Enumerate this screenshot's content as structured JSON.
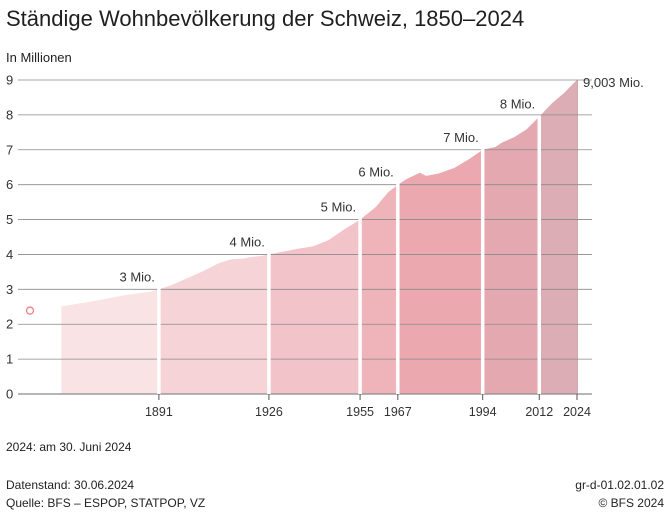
{
  "title": "Ständige Wohnbevölkerung der Schweiz, 1850–2024",
  "unit_label": "In Millionen",
  "note": "2024: am 30. Juni 2024",
  "footer": {
    "data_status": "Datenstand: 30.06.2024",
    "source": "Quelle: BFS – ESPOP, STATPOP, VZ",
    "code": "gr-d-01.02.01.02",
    "copyright": "© BFS 2024"
  },
  "colors": {
    "segments": [
      "#f9e3e5",
      "#f6d3d7",
      "#f2c3c8",
      "#efb4ba",
      "#eba8af",
      "#e4a9b0",
      "#dcadb4",
      "#d2a9af"
    ],
    "marker": "#e8898f",
    "grid": "#8a8a8a",
    "divider": "#ffffff"
  },
  "chart_data": {
    "type": "area",
    "title": "Ständige Wohnbevölkerung der Schweiz, 1850–2024",
    "ylabel": "In Millionen",
    "ylim": [
      0,
      9
    ],
    "yticks": [
      "0",
      "1",
      "2",
      "3",
      "4",
      "5",
      "6",
      "7",
      "8",
      "9"
    ],
    "xticks": [
      "1891",
      "1926",
      "1955",
      "1967",
      "1994",
      "2012",
      "2024"
    ],
    "xlim": [
      1850,
      2024
    ],
    "grid": true,
    "point_1850": {
      "x": 1850,
      "y": 2.39
    },
    "series": [
      {
        "x": [
          1860,
          1870,
          1880,
          1888,
          1891,
          1895,
          1900,
          1905,
          1910,
          1914,
          1918,
          1920,
          1924,
          1926,
          1930,
          1935,
          1940,
          1945,
          1950,
          1955,
          1960,
          1964,
          1967,
          1970,
          1974,
          1976,
          1980,
          1985,
          1990,
          1994,
          1998,
          2000,
          2004,
          2008,
          2012,
          2016,
          2020,
          2024
        ],
        "y": [
          2.51,
          2.66,
          2.83,
          2.93,
          3.0,
          3.12,
          3.32,
          3.52,
          3.75,
          3.86,
          3.88,
          3.92,
          3.96,
          4.0,
          4.07,
          4.16,
          4.23,
          4.41,
          4.72,
          5.0,
          5.36,
          5.79,
          6.0,
          6.17,
          6.34,
          6.25,
          6.32,
          6.48,
          6.75,
          7.0,
          7.08,
          7.2,
          7.36,
          7.59,
          7.95,
          8.33,
          8.64,
          9.003
        ]
      }
    ],
    "milestones": [
      {
        "year": 1891,
        "label": "3 Mio."
      },
      {
        "year": 1926,
        "label": "4 Mio."
      },
      {
        "year": 1955,
        "label": "5 Mio."
      },
      {
        "year": 1967,
        "label": "6 Mio."
      },
      {
        "year": 1994,
        "label": "7 Mio."
      },
      {
        "year": 2012,
        "label": "8 Mio."
      },
      {
        "year": 2024,
        "label": "9,003 Mio."
      }
    ]
  }
}
